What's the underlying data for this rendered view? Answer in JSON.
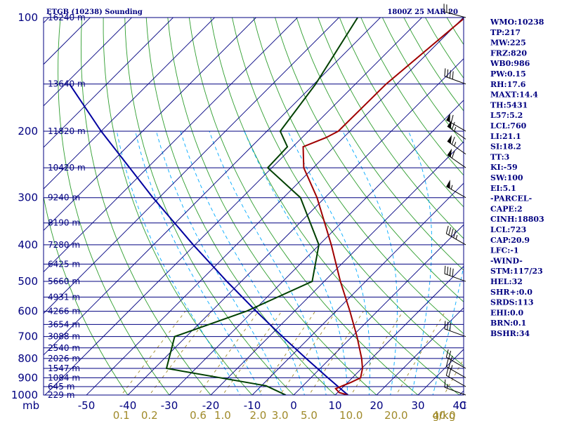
{
  "chart_data": {
    "type": "line",
    "subtype": "skew-t log-p sounding",
    "title_left": "ETGB (10238) Sounding",
    "title_right": "1800Z 25 MAR 20",
    "y_axis_unit": "mb",
    "x_axis_unit": "C",
    "mixing_ratio_unit": "g/kg",
    "pressure_levels": [
      {
        "p": 100,
        "label": "100",
        "height": "16240 m"
      },
      {
        "p": 150,
        "label": "",
        "height": "13640 m"
      },
      {
        "p": 200,
        "label": "200",
        "height": "11820 m"
      },
      {
        "p": 250,
        "label": "",
        "height": "10420 m"
      },
      {
        "p": 300,
        "label": "300",
        "height": "9240 m"
      },
      {
        "p": 350,
        "label": "",
        "height": "8190 m"
      },
      {
        "p": 400,
        "label": "400",
        "height": "7280 m"
      },
      {
        "p": 450,
        "label": "",
        "height": "6425 m"
      },
      {
        "p": 500,
        "label": "500",
        "height": "5660 m"
      },
      {
        "p": 550,
        "label": "",
        "height": "4931 m"
      },
      {
        "p": 600,
        "label": "600",
        "height": "4266 m"
      },
      {
        "p": 650,
        "label": "",
        "height": "3654 m"
      },
      {
        "p": 700,
        "label": "700",
        "height": "3088 m"
      },
      {
        "p": 750,
        "label": "",
        "height": "2540 m"
      },
      {
        "p": 800,
        "label": "800",
        "height": "2026 m"
      },
      {
        "p": 850,
        "label": "",
        "height": "1547 m"
      },
      {
        "p": 900,
        "label": "900",
        "height": "1084 m"
      },
      {
        "p": 950,
        "label": "",
        "height": "645 m"
      },
      {
        "p": 1000,
        "label": "1000",
        "height": "229 m"
      }
    ],
    "temperature_ticks": [
      -50,
      -40,
      -30,
      -20,
      -10,
      0,
      10,
      20,
      30,
      40
    ],
    "mixing_ratio_ticks": [
      {
        "value": 0.1,
        "label": "0.1"
      },
      {
        "value": 0.2,
        "label": "0.2"
      },
      {
        "value": 0.6,
        "label": "0.6"
      },
      {
        "value": 1.0,
        "label": "1.0"
      },
      {
        "value": 2.0,
        "label": "2.0"
      },
      {
        "value": 3.0,
        "label": "3.0"
      },
      {
        "value": 5.0,
        "label": "5.0"
      },
      {
        "value": 10.0,
        "label": "10.0"
      },
      {
        "value": 20.0,
        "label": "20.0"
      },
      {
        "value": 40.0,
        "label": "40.0"
      }
    ],
    "temperature_profile": [
      {
        "p": 1000,
        "t": 13.1
      },
      {
        "p": 985,
        "t": 10.4
      },
      {
        "p": 962,
        "t": 8.6
      },
      {
        "p": 925,
        "t": 10.8
      },
      {
        "p": 900,
        "t": 12.0
      },
      {
        "p": 850,
        "t": 10.2
      },
      {
        "p": 800,
        "t": 7.6
      },
      {
        "p": 700,
        "t": 1.2
      },
      {
        "p": 600,
        "t": -6.6
      },
      {
        "p": 500,
        "t": -16.1
      },
      {
        "p": 400,
        "t": -27.1
      },
      {
        "p": 300,
        "t": -41.9
      },
      {
        "p": 250,
        "t": -52.3
      },
      {
        "p": 220,
        "t": -57.5
      },
      {
        "p": 208,
        "t": -54.2
      },
      {
        "p": 200,
        "t": -52.8
      },
      {
        "p": 150,
        "t": -52.6
      },
      {
        "p": 100,
        "t": -49.6
      }
    ],
    "dewpoint_profile": [
      {
        "p": 1000,
        "t": -1.9
      },
      {
        "p": 945,
        "t": -8.9
      },
      {
        "p": 850,
        "t": -37.1
      },
      {
        "p": 700,
        "t": -42.8
      },
      {
        "p": 600,
        "t": -31.6
      },
      {
        "p": 500,
        "t": -22.9
      },
      {
        "p": 400,
        "t": -30.1
      },
      {
        "p": 300,
        "t": -45.9
      },
      {
        "p": 250,
        "t": -61.0
      },
      {
        "p": 220,
        "t": -61.3
      },
      {
        "p": 200,
        "t": -66.8
      },
      {
        "p": 150,
        "t": -69.6
      },
      {
        "p": 100,
        "t": -75.5
      }
    ],
    "parcel_profile": [
      {
        "p": 1000,
        "t": 13.1
      },
      {
        "p": 900,
        "t": 4.1
      },
      {
        "p": 800,
        "t": -5.8
      },
      {
        "p": 700,
        "t": -16.8
      },
      {
        "p": 600,
        "t": -29.2
      },
      {
        "p": 500,
        "t": -43.5
      },
      {
        "p": 400,
        "t": -60.4
      },
      {
        "p": 300,
        "t": -81.5
      },
      {
        "p": 200,
        "t": -110.0
      },
      {
        "p": 150,
        "t": -129.0
      }
    ],
    "wind_barbs": [
      {
        "p": 1000,
        "dir": 290,
        "kt": 15
      },
      {
        "p": 950,
        "dir": 300,
        "kt": 20
      },
      {
        "p": 900,
        "dir": 300,
        "kt": 25
      },
      {
        "p": 850,
        "dir": 300,
        "kt": 25
      },
      {
        "p": 700,
        "dir": 290,
        "kt": 30
      },
      {
        "p": 500,
        "dir": 290,
        "kt": 40
      },
      {
        "p": 400,
        "dir": 300,
        "kt": 45
      },
      {
        "p": 300,
        "dir": 300,
        "kt": 55
      },
      {
        "p": 250,
        "dir": 305,
        "kt": 60
      },
      {
        "p": 230,
        "dir": 305,
        "kt": 65
      },
      {
        "p": 210,
        "dir": 305,
        "kt": 65
      },
      {
        "p": 200,
        "dir": 300,
        "kt": 60
      },
      {
        "p": 150,
        "dir": 290,
        "kt": 40
      },
      {
        "p": 100,
        "dir": 285,
        "kt": 25
      }
    ],
    "colors": {
      "temperature": "#a00000",
      "dewpoint": "#004000",
      "parcel": "#0000a0",
      "isobar": "#000080",
      "isotherm": "#000080",
      "dry_adiabat": "#2e9d2e",
      "moist_adiabat": "#00aaff",
      "mixing_ratio": "#a08a2a"
    }
  },
  "indices": [
    "WMO:10238",
    "TP:217",
    "MW:225",
    "FRZ:820",
    "WB0:986",
    "PW:0.15",
    "RH:17.6",
    "MAXT:14.4",
    "TH:5431",
    "L57:5.2",
    "LCL:760",
    "LI:21.1",
    "SI:18.2",
    "TT:3",
    "KI:-59",
    "SW:100",
    "EI:5.1",
    "-PARCEL-",
    "CAPE:2",
    "CINH:18803",
    "LCL:723",
    "CAP:20.9",
    "LFC:-1",
    "-WIND-",
    "STM:117/23",
    "HEL:32",
    "SHR+:0.0",
    "SRDS:113",
    "EHI:0.0",
    "BRN:0.1",
    "BSHR:34"
  ]
}
